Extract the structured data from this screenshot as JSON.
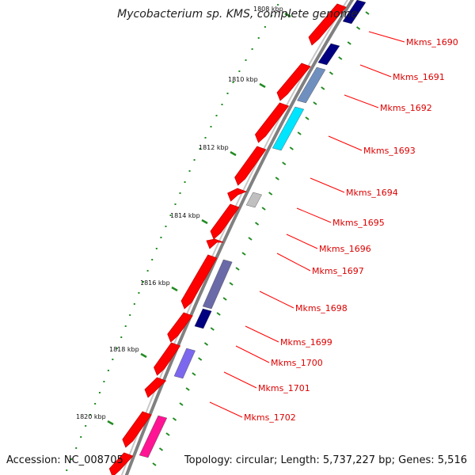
{
  "title": "Mycobacterium sp. KMS, complete genome",
  "footer": {
    "accession": "Accession: NC_008705",
    "summary": "Topology: circular; Length: 5,737,227 bp; Genes: 5,516"
  },
  "colors": {
    "backbone": "#808080",
    "gene_red": "#ff0000",
    "label_red": "#dd0000",
    "tick_green": "#228b22"
  },
  "kbp_labels": [
    "1808 kbp",
    "1810 kbp",
    "1812 kbp",
    "1814 kbp",
    "1816 kbp",
    "1818 kbp",
    "1820 kbp"
  ],
  "genes": [
    {
      "name": "Mkms_1690",
      "color": "#000080"
    },
    {
      "name": "Mkms_1691",
      "color": "#6f8fbf"
    },
    {
      "name": "Mkms_1692",
      "color": "#4a7fb0"
    },
    {
      "name": "Mkms_1693",
      "color": "#00e5ff"
    },
    {
      "name": "Mkms_1694",
      "color": "#ff0000"
    },
    {
      "name": "Mkms_1695",
      "color": "#c0c0c0"
    },
    {
      "name": "Mkms_1696",
      "color": "#ff0000"
    },
    {
      "name": "Mkms_1697",
      "color": "#ff0000"
    },
    {
      "name": "Mkms_1698",
      "color": "#6a6aa8"
    },
    {
      "name": "Mkms_1699",
      "color": "#000080"
    },
    {
      "name": "Mkms_1700",
      "color": "#7b68ee"
    },
    {
      "name": "Mkms_1701",
      "color": "#ff0000"
    },
    {
      "name": "Mkms_1702",
      "color": "#ff1493"
    }
  ]
}
